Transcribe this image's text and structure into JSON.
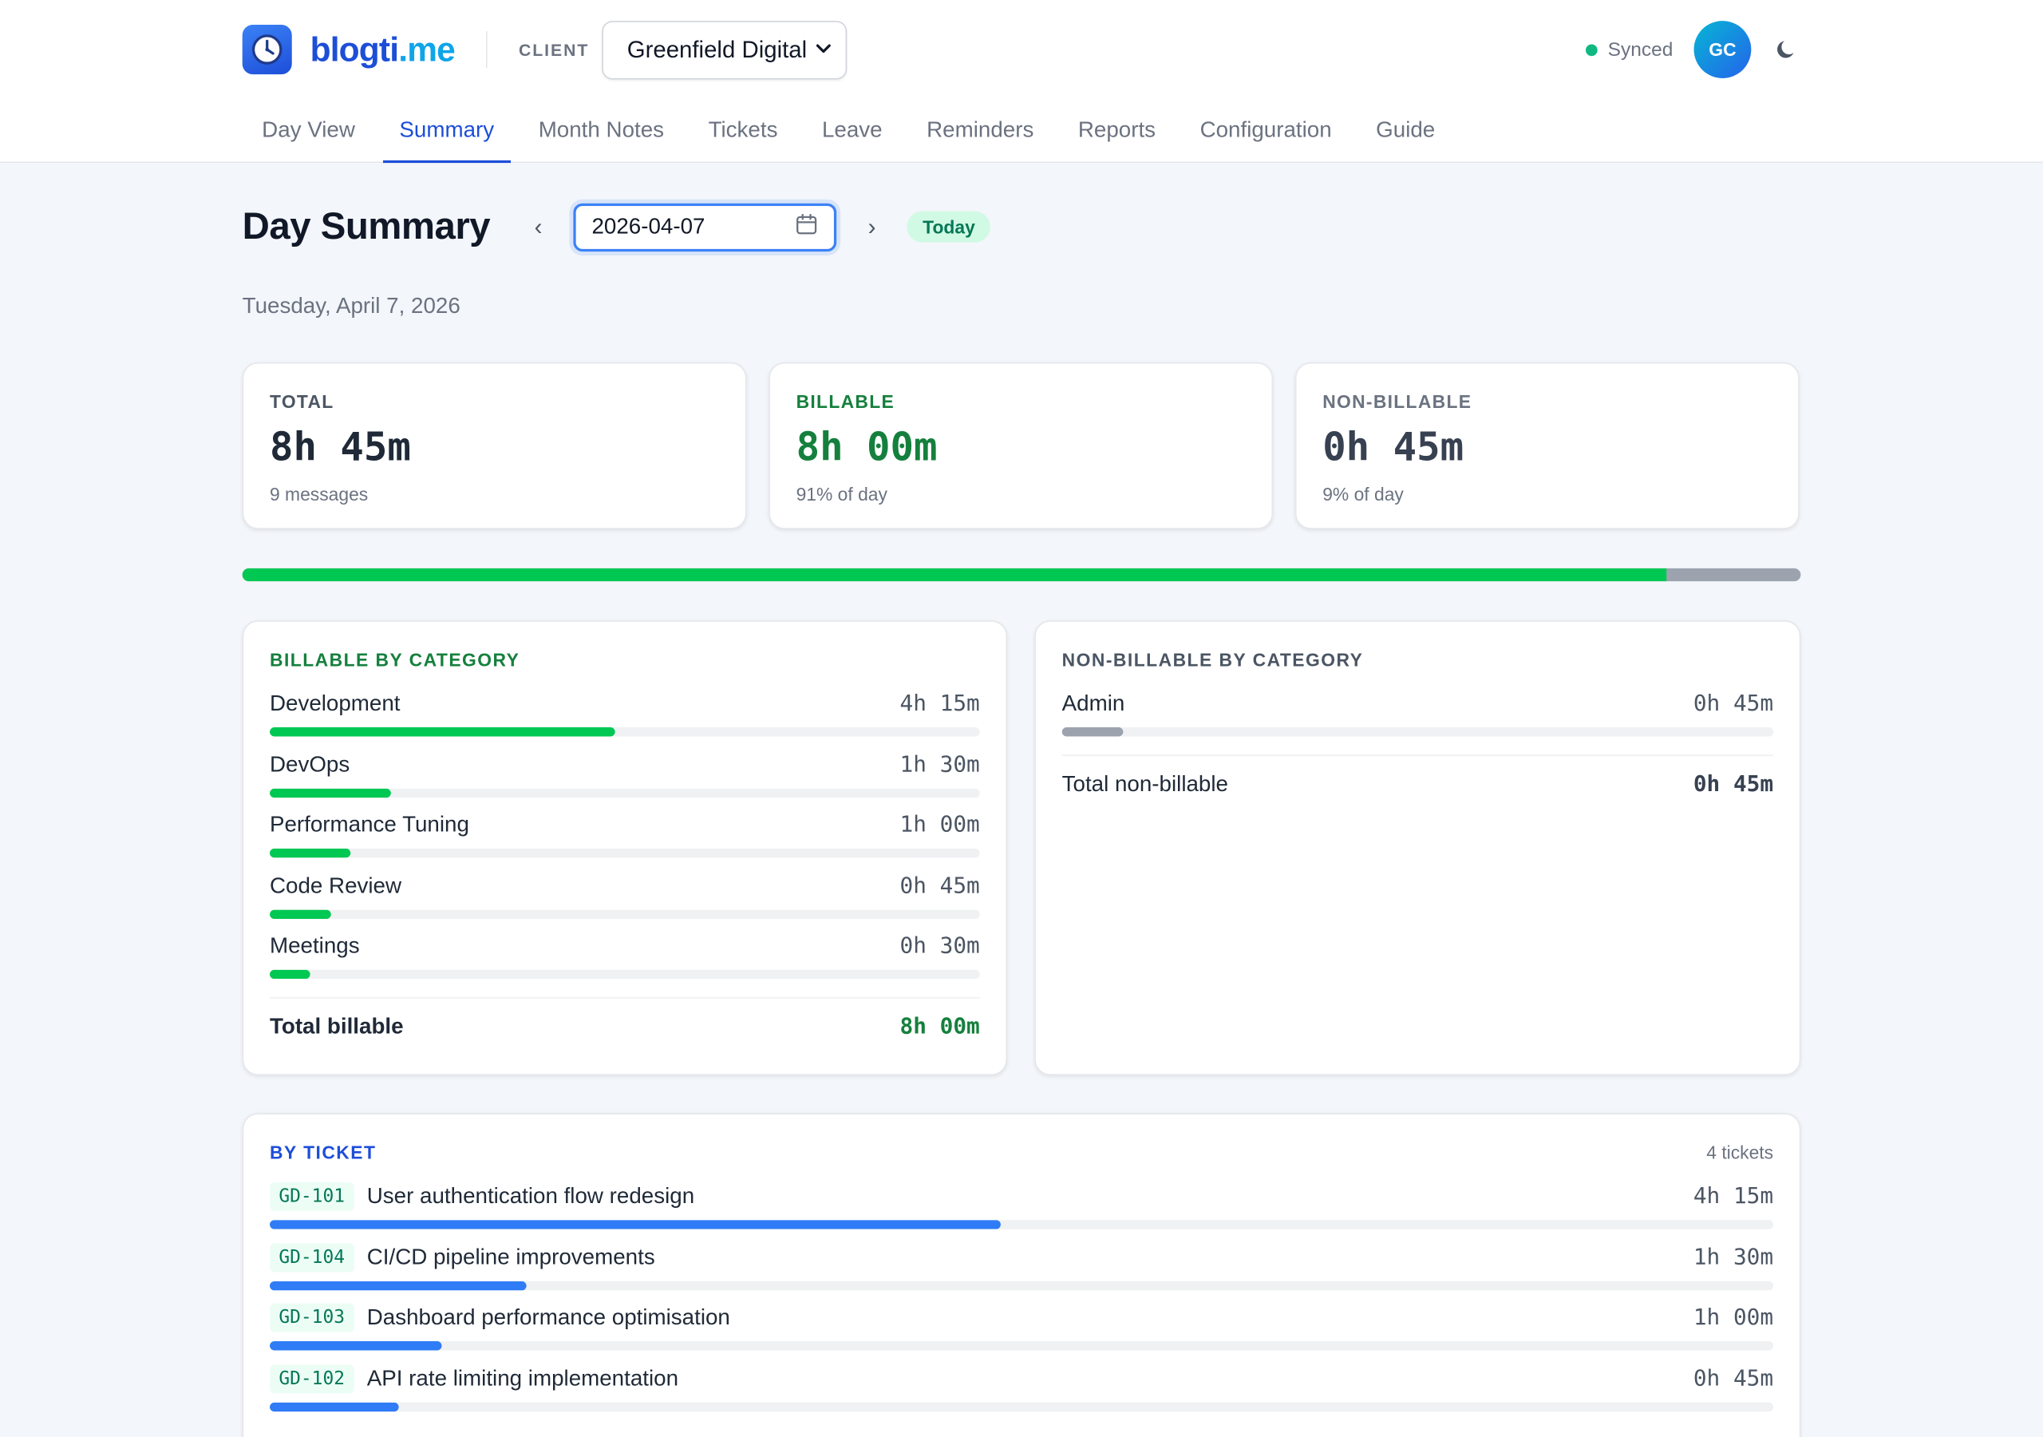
{
  "app": {
    "logo_main": "blogti",
    "logo_suffix": ".me"
  },
  "client": {
    "label": "CLIENT",
    "selected": "Greenfield Digital"
  },
  "status": {
    "sync_text": "Synced",
    "avatar_initials": "GC"
  },
  "nav": [
    "Day View",
    "Summary",
    "Month Notes",
    "Tickets",
    "Leave",
    "Reminders",
    "Reports",
    "Configuration",
    "Guide"
  ],
  "nav_active": "Summary",
  "page": {
    "title": "Day Summary",
    "date_value": "2026-04-07",
    "today_label": "Today",
    "date_long": "Tuesday, April 7, 2026"
  },
  "stats": {
    "total": {
      "label": "TOTAL",
      "value": "8h 45m",
      "sub": "9 messages"
    },
    "billable": {
      "label": "BILLABLE",
      "value": "8h 00m",
      "sub": "91% of day"
    },
    "non_billable": {
      "label": "NON-BILLABLE",
      "value": "0h 45m",
      "sub": "9% of day"
    }
  },
  "billable_ratio": 0.914,
  "billable_by_category": {
    "title": "BILLABLE BY CATEGORY",
    "items": [
      {
        "name": "Development",
        "value": "4h 15m",
        "fraction": 0.486
      },
      {
        "name": "DevOps",
        "value": "1h 30m",
        "fraction": 0.171
      },
      {
        "name": "Performance Tuning",
        "value": "1h 00m",
        "fraction": 0.114
      },
      {
        "name": "Code Review",
        "value": "0h 45m",
        "fraction": 0.086
      },
      {
        "name": "Meetings",
        "value": "0h 30m",
        "fraction": 0.057
      }
    ],
    "total_label": "Total billable",
    "total_value": "8h 00m"
  },
  "non_billable_by_category": {
    "title": "NON-BILLABLE BY CATEGORY",
    "items": [
      {
        "name": "Admin",
        "value": "0h 45m",
        "fraction": 0.086
      }
    ],
    "total_label": "Total non-billable",
    "total_value": "0h 45m"
  },
  "by_ticket": {
    "title": "BY TICKET",
    "count_label": "4 tickets",
    "items": [
      {
        "code": "GD-101",
        "name": "User authentication flow redesign",
        "value": "4h 15m",
        "fraction": 0.486
      },
      {
        "code": "GD-104",
        "name": "CI/CD pipeline improvements",
        "value": "1h 30m",
        "fraction": 0.171
      },
      {
        "code": "GD-103",
        "name": "Dashboard performance optimisation",
        "value": "1h 00m",
        "fraction": 0.114
      },
      {
        "code": "GD-102",
        "name": "API rate limiting implementation",
        "value": "0h 45m",
        "fraction": 0.086
      }
    ]
  },
  "icons": {
    "logo": "clock-icon",
    "calendar": "calendar-icon",
    "theme": "moon-icon",
    "prev": "chevron-left-icon",
    "next": "chevron-right-icon"
  },
  "colors": {
    "accent": "#1d4ed8",
    "billable": "#00c853",
    "non_billable": "#9ca3af",
    "ticket_bar": "#2f7cf6",
    "synced": "#10b981"
  }
}
